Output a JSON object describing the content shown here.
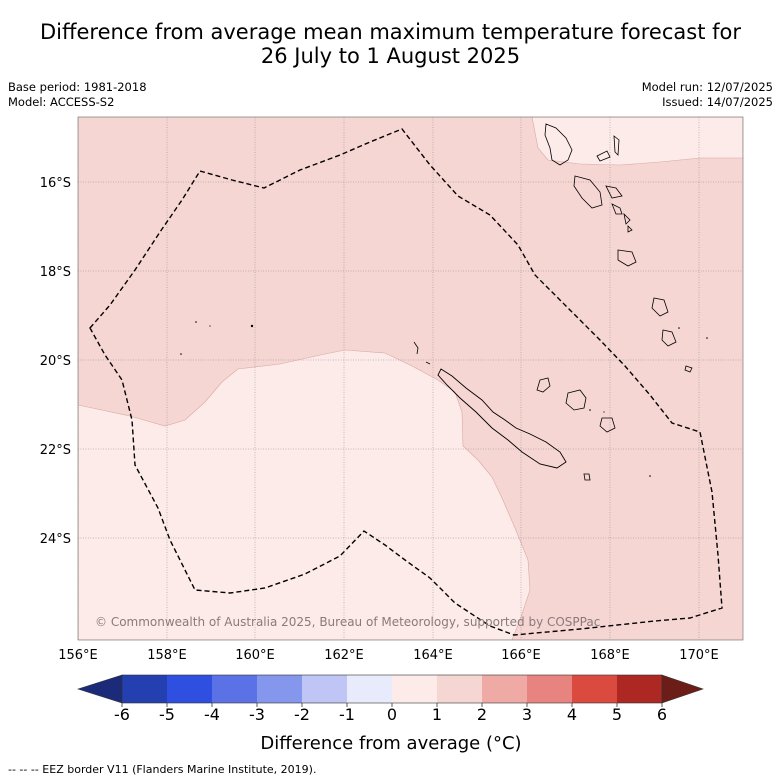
{
  "title_line1": "Difference from average mean maximum temperature forecast for",
  "title_line2": "26 July to 1 August 2025",
  "meta": {
    "base_period": "Base period: 1981-2018",
    "model": "Model: ACCESS-S2",
    "model_run": "Model run: 12/07/2025",
    "issued": "Issued: 14/07/2025"
  },
  "map": {
    "lat_labels": [
      "16°S",
      "18°S",
      "20°S",
      "22°S",
      "24°S"
    ],
    "lon_labels": [
      "156°E",
      "158°E",
      "160°E",
      "162°E",
      "164°E",
      "166°E",
      "168°E",
      "170°E"
    ],
    "copyright": "© Commonwealth of Australia 2025, Bureau of Meteorology, supported by COSPPac",
    "region_colors": {
      "anomaly_0_1": "#fcebe9",
      "anomaly_1_2": "#f5d6d3"
    }
  },
  "colorbar": {
    "ticks": [
      "-6",
      "-5",
      "-4",
      "-3",
      "-2",
      "-1",
      "0",
      "1",
      "2",
      "3",
      "4",
      "5",
      "6"
    ],
    "colors": [
      "#1b2b7a",
      "#233fb0",
      "#2f4fe0",
      "#5a72e6",
      "#8597ec",
      "#bfc5f4",
      "#e8ebfb",
      "#fcebe9",
      "#f5d6d3",
      "#efaaa6",
      "#e8847f",
      "#da4a3e",
      "#ad2822",
      "#6c1d17"
    ],
    "label": "Difference from average (°C)"
  },
  "footer": "-- -- -- EEZ border V11 (Flanders Marine Institute, 2019)."
}
